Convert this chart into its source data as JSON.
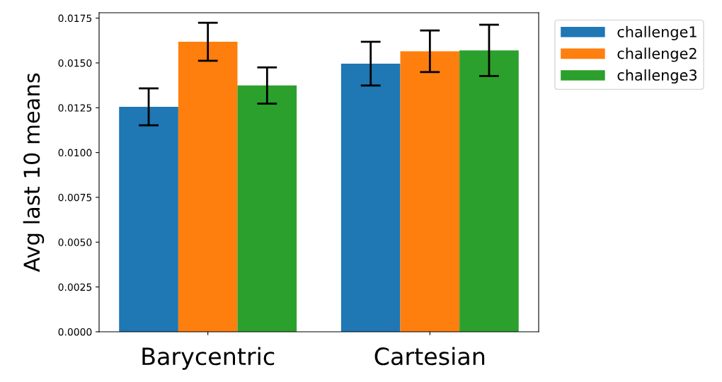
{
  "chart_data": {
    "type": "bar",
    "ylabel": "Avg last 10 means",
    "categories": [
      "Barycentric",
      "Cartesian"
    ],
    "series": [
      {
        "name": "challenge1",
        "color": "#1f77b4",
        "values": [
          0.01255,
          0.01496
        ],
        "errors": [
          0.00103,
          0.00122
        ]
      },
      {
        "name": "challenge2",
        "color": "#ff7f0e",
        "values": [
          0.01618,
          0.01565
        ],
        "errors": [
          0.00106,
          0.00116
        ]
      },
      {
        "name": "challenge3",
        "color": "#2ca02c",
        "values": [
          0.01374,
          0.0157
        ],
        "errors": [
          0.00101,
          0.00143
        ]
      }
    ],
    "ylim": [
      0,
      0.0178
    ],
    "yticks": [
      {
        "value": 0,
        "label": "0.0000"
      },
      {
        "value": 0.0025,
        "label": "0.0025"
      },
      {
        "value": 0.005,
        "label": "0.0050"
      },
      {
        "value": 0.0075,
        "label": "0.0075"
      },
      {
        "value": 0.01,
        "label": "0.0100"
      },
      {
        "value": 0.0125,
        "label": "0.0125"
      },
      {
        "value": 0.015,
        "label": "0.0150"
      },
      {
        "value": 0.0175,
        "label": "0.0175"
      }
    ],
    "grid": false,
    "legend": "top right"
  }
}
